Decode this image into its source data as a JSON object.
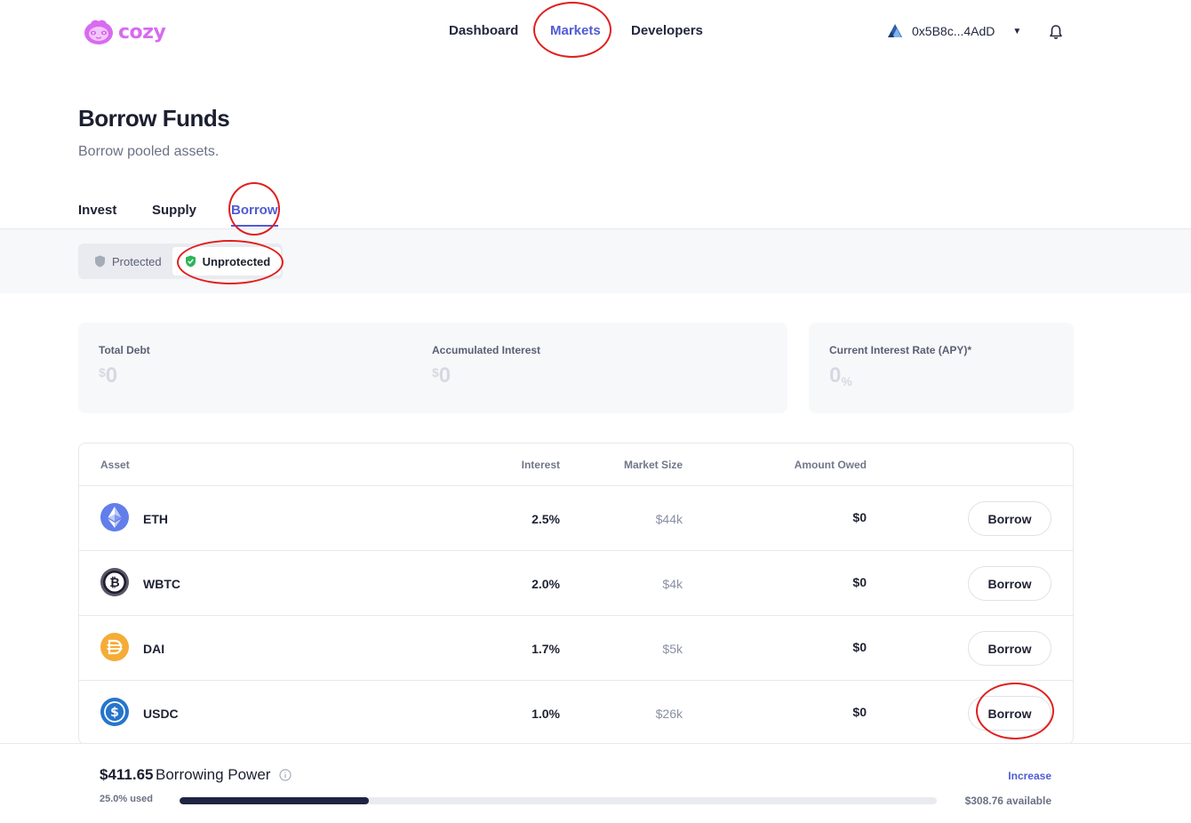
{
  "header": {
    "logo_text": "cozy",
    "nav": [
      {
        "label": "Dashboard"
      },
      {
        "label": "Markets"
      },
      {
        "label": "Developers"
      }
    ],
    "active_nav": "Markets",
    "wallet_address": "0x5B8c...4AdD",
    "icons": {
      "wallet": "wallet-network-icon",
      "caret": "chevron-down-icon",
      "notifications": "bell-icon"
    }
  },
  "page": {
    "title": "Borrow Funds",
    "subtitle": "Borrow pooled assets."
  },
  "tabs": [
    {
      "label": "Invest"
    },
    {
      "label": "Supply"
    },
    {
      "label": "Borrow"
    }
  ],
  "active_tab": "Borrow",
  "protection_toggle": {
    "options": [
      {
        "label": "Protected",
        "icon": "shield-gray-icon"
      },
      {
        "label": "Unprotected",
        "icon": "shield-check-green-icon"
      }
    ],
    "selected": "Unprotected"
  },
  "stats": {
    "total_debt": {
      "label": "Total Debt",
      "currency": "$",
      "value": "0"
    },
    "accumulated_interest": {
      "label": "Accumulated Interest",
      "currency": "$",
      "value": "0"
    },
    "current_rate": {
      "label": "Current Interest Rate (APY)*",
      "value": "0",
      "unit": "%"
    }
  },
  "table": {
    "headers": {
      "asset": "Asset",
      "interest": "Interest",
      "market_size": "Market Size",
      "amount_owed": "Amount Owed"
    },
    "rows": [
      {
        "asset": "ETH",
        "icon": "eth-coin-icon",
        "interest": "2.5%",
        "market_size": "$44k",
        "amount_owed": "$0",
        "action": "Borrow"
      },
      {
        "asset": "WBTC",
        "icon": "wbtc-coin-icon",
        "interest": "2.0%",
        "market_size": "$4k",
        "amount_owed": "$0",
        "action": "Borrow"
      },
      {
        "asset": "DAI",
        "icon": "dai-coin-icon",
        "interest": "1.7%",
        "market_size": "$5k",
        "amount_owed": "$0",
        "action": "Borrow"
      },
      {
        "asset": "USDC",
        "icon": "usdc-coin-icon",
        "interest": "1.0%",
        "market_size": "$26k",
        "amount_owed": "$0",
        "action": "Borrow"
      }
    ]
  },
  "footer": {
    "amount": "$411.65",
    "label": "Borrowing Power",
    "increase_label": "Increase",
    "used_label": "25.0% used",
    "used_fraction": 0.25,
    "available_label": "$308.76 available"
  },
  "colors": {
    "accent": "#4f5bd5",
    "brand": "#d86bf0",
    "annotation": "#e0201e",
    "progress_fill": "#1f2442"
  }
}
